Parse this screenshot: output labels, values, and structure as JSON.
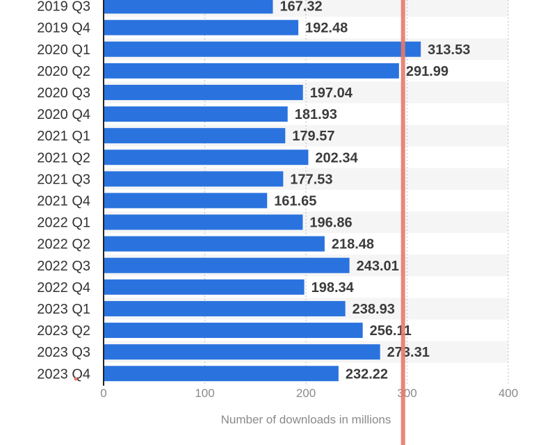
{
  "chart_data": {
    "type": "bar",
    "orientation": "horizontal",
    "categories": [
      "2019 Q3",
      "2019 Q4",
      "2020 Q1",
      "2020 Q2",
      "2020 Q3",
      "2020 Q4",
      "2021 Q1",
      "2021 Q2",
      "2021 Q3",
      "2021 Q4",
      "2022 Q1",
      "2022 Q2",
      "2022 Q3",
      "2022 Q4",
      "2023 Q1",
      "2023 Q2",
      "2023 Q3",
      "2023 Q4"
    ],
    "values": [
      167.32,
      192.48,
      313.53,
      291.99,
      197.04,
      181.93,
      179.57,
      202.34,
      177.53,
      161.65,
      196.86,
      218.48,
      243.01,
      198.34,
      238.93,
      256.11,
      273.31,
      232.22
    ],
    "value_labels": [
      "167.32",
      "192.48",
      "313.53",
      "291.99",
      "197.04",
      "181.93",
      "179.57",
      "202.34",
      "177.53",
      "161.65",
      "196.86",
      "218.48",
      "243.01",
      "198.34",
      "238.93",
      "256.11",
      "273.31",
      "232.22"
    ],
    "xlabel": "Number of downloads in millions",
    "ylabel": "",
    "xlim": [
      0,
      400
    ],
    "xticks": [
      "0",
      "100",
      "200",
      "300",
      "400"
    ],
    "grid": "vertical dotted",
    "bar_color": "#2a73de",
    "stripe_color": "#f5f5f5",
    "marker_line_value": 296,
    "marker_line_color": "#e8796b"
  }
}
